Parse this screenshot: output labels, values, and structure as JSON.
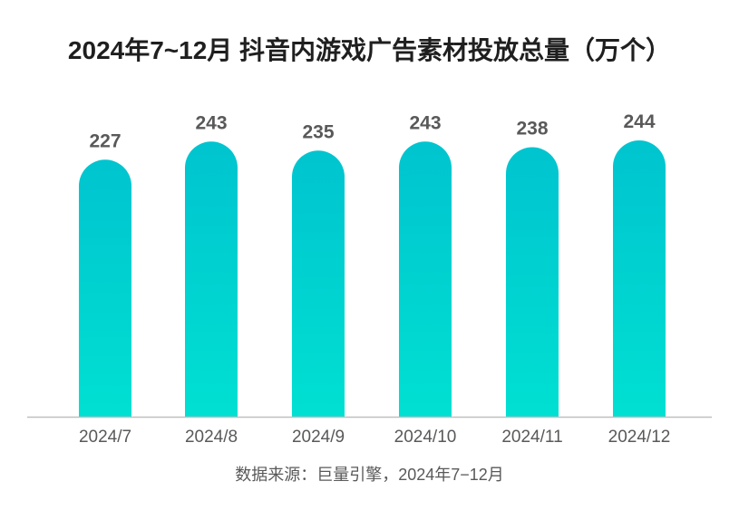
{
  "colors": {
    "bar_top": "#00c4cf",
    "bar_bottom": "#00e0d2",
    "axis": "#bfbfbf",
    "value_label": "#595959",
    "tick_label": "#595959"
  },
  "chart_data": {
    "type": "bar",
    "title": "2024年7~12月 抖音内游戏广告素材投放总量（万个）",
    "categories": [
      "2024/7",
      "2024/8",
      "2024/9",
      "2024/10",
      "2024/11",
      "2024/12"
    ],
    "values": [
      227,
      243,
      235,
      243,
      238,
      244
    ],
    "data_labels": [
      "227",
      "243",
      "235",
      "243",
      "238",
      "244"
    ],
    "xlabel": "",
    "ylabel": "",
    "grid": false,
    "legend": "none",
    "source": "数据来源：巨量引擎，2024年7−12月"
  }
}
